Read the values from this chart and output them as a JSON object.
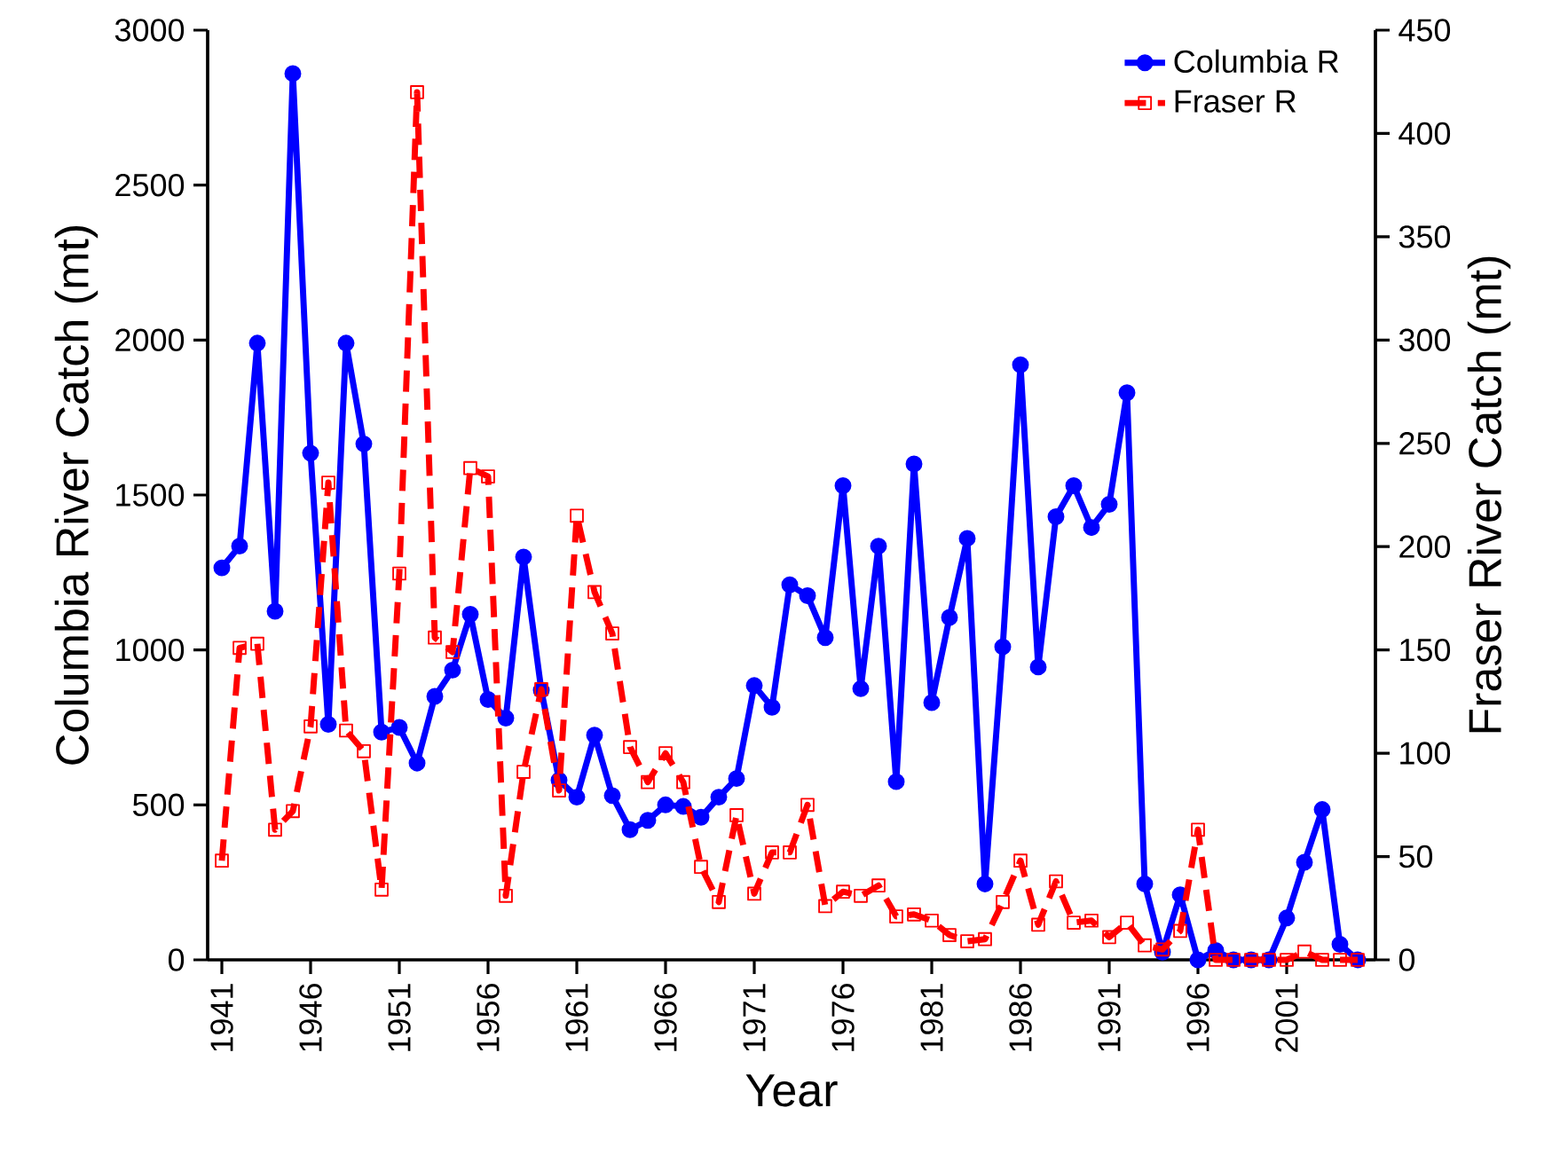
{
  "chart_data": {
    "type": "line",
    "xlabel": "Year",
    "ylabel": "Columbia River Catch (mt)",
    "y2label": "Fraser River Catch (mt)",
    "x": [
      1941,
      1942,
      1943,
      1944,
      1945,
      1946,
      1947,
      1948,
      1949,
      1950,
      1951,
      1952,
      1953,
      1954,
      1955,
      1956,
      1957,
      1958,
      1959,
      1960,
      1961,
      1962,
      1963,
      1964,
      1965,
      1966,
      1967,
      1968,
      1969,
      1970,
      1971,
      1972,
      1973,
      1974,
      1975,
      1976,
      1977,
      1978,
      1979,
      1980,
      1981,
      1982,
      1983,
      1984,
      1985,
      1986,
      1987,
      1988,
      1989,
      1990,
      1991,
      1992,
      1993,
      1994,
      1995,
      1996,
      1997,
      1998,
      1999,
      2000,
      2001,
      2002,
      2003,
      2004,
      2005
    ],
    "series": [
      {
        "name": "Columbia R",
        "color": "#0000ff",
        "marker": "circle",
        "line_style": "solid",
        "axis": "y",
        "values": [
          1265,
          1335,
          1990,
          1125,
          2860,
          1635,
          760,
          1990,
          1665,
          735,
          750,
          635,
          850,
          935,
          1115,
          840,
          780,
          1300,
          870,
          580,
          525,
          725,
          530,
          420,
          450,
          500,
          495,
          460,
          525,
          585,
          885,
          815,
          1210,
          1175,
          1040,
          1530,
          875,
          1335,
          575,
          1600,
          830,
          1105,
          1360,
          245,
          1010,
          1920,
          945,
          1430,
          1530,
          1395,
          1470,
          1830,
          245,
          25,
          210,
          0,
          30,
          0,
          0,
          0,
          135,
          315,
          485,
          50,
          0
        ]
      },
      {
        "name": "Fraser R",
        "color": "#ff0000",
        "marker": "square",
        "line_style": "dashed",
        "axis": "y2",
        "values": [
          48,
          151,
          153,
          63,
          72,
          113,
          231,
          111,
          101,
          34,
          187,
          420,
          156,
          149,
          238,
          234,
          31,
          91,
          131,
          82,
          215,
          178,
          158,
          103,
          86,
          100,
          86,
          45,
          28,
          70,
          32,
          52,
          52,
          75,
          26,
          33,
          31,
          36,
          21,
          22,
          19,
          12,
          9,
          10,
          28,
          48,
          17,
          38,
          18,
          19,
          11,
          18,
          7,
          5,
          14,
          63,
          0,
          0,
          0,
          0,
          0,
          4,
          0,
          0,
          0
        ]
      }
    ],
    "xlim": [
      1940.2,
      2006
    ],
    "xticks": [
      1941,
      1946,
      1951,
      1956,
      1961,
      1966,
      1971,
      1976,
      1981,
      1986,
      1991,
      1996,
      2001
    ],
    "ylim": [
      0,
      3000
    ],
    "yticks": [
      0,
      500,
      1000,
      1500,
      2000,
      2500,
      3000
    ],
    "y2lim": [
      0,
      450
    ],
    "y2ticks": [
      0,
      50,
      100,
      150,
      200,
      250,
      300,
      350,
      400,
      450
    ],
    "legend": "top right",
    "grid": false
  }
}
